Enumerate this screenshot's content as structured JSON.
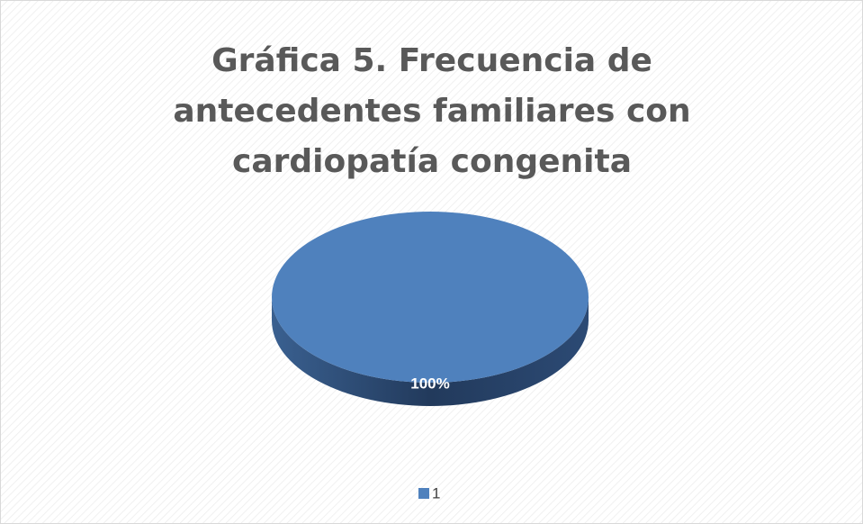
{
  "chart_data": {
    "type": "pie",
    "title": "Gráfica 5. Frecuencia de antecedentes familiares con cardiopatía congenita",
    "categories": [
      "1"
    ],
    "values": [
      100
    ],
    "value_labels": [
      "100%"
    ],
    "colors": [
      "#4f81bd"
    ],
    "legend": "bottom"
  }
}
